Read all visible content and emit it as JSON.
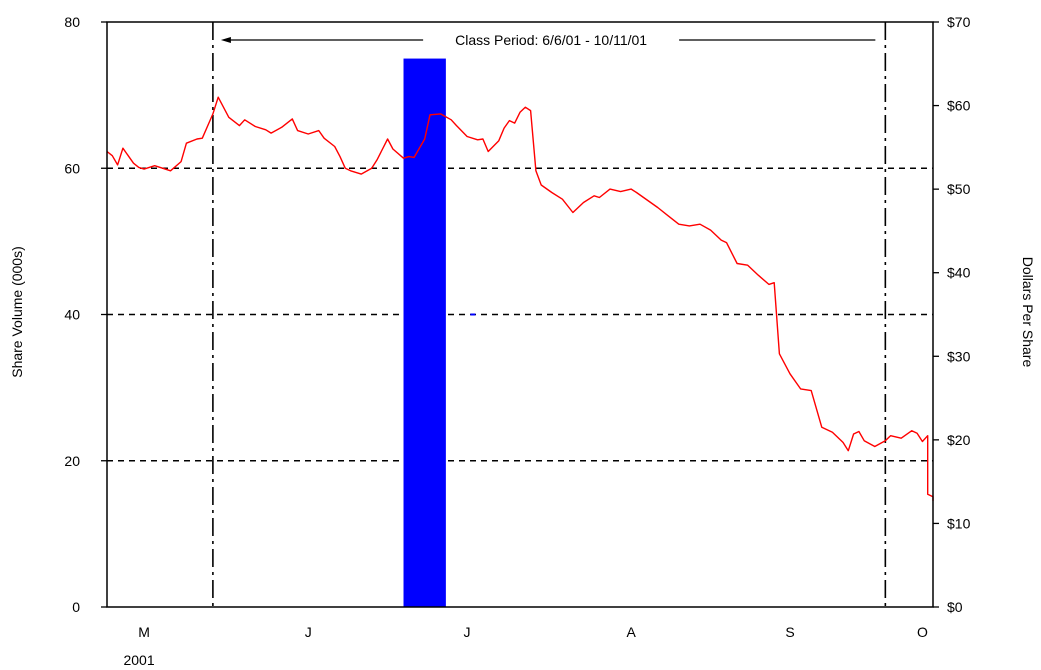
{
  "chart_data": {
    "type": "line",
    "title": "",
    "ylabel_left": "Share Volume (000s)",
    "ylabel_right": "Dollars Per Share",
    "ylim_left": [
      0,
      80
    ],
    "ylim_right": [
      0,
      70
    ],
    "yticks_left": [
      0,
      20,
      40,
      60,
      80
    ],
    "yticks_right": [
      "$0",
      "$10",
      "$20",
      "$30",
      "$40",
      "$50",
      "$60",
      "$70"
    ],
    "yticks_right_values": [
      0,
      10,
      20,
      30,
      40,
      50,
      60,
      70
    ],
    "grid_lines_left": [
      20,
      40,
      60
    ],
    "x_start": "2001-05-17",
    "x_end": "2001-10-20",
    "month_labels": [
      {
        "label": "M",
        "date": "2001-05-24"
      },
      {
        "label": "J",
        "date": "2001-06-24"
      },
      {
        "label": "J",
        "date": "2001-07-24"
      },
      {
        "label": "A",
        "date": "2001-08-24"
      },
      {
        "label": "S",
        "date": "2001-09-23"
      },
      {
        "label": "O",
        "date": "2001-10-18"
      }
    ],
    "year_label": "2001",
    "class_period": {
      "label": "Class Period: 6/6/01 - 10/11/01",
      "start": "2001-06-06",
      "end": "2001-10-11"
    },
    "volume_series": {
      "name": "Share Volume",
      "color": "#0000ff",
      "bars": [
        {
          "start": "2001-07-12",
          "end": "2001-07-20",
          "value": 75
        }
      ]
    },
    "price_series": {
      "name": "Dollars Per Share",
      "color": "#ff0000",
      "points": [
        [
          "2001-05-17",
          54.5
        ],
        [
          "2001-05-18",
          54.0
        ],
        [
          "2001-05-19",
          52.9
        ],
        [
          "2001-05-20",
          54.9
        ],
        [
          "2001-05-22",
          53.1
        ],
        [
          "2001-05-23",
          52.6
        ],
        [
          "2001-05-24",
          52.4
        ],
        [
          "2001-05-26",
          52.8
        ],
        [
          "2001-05-28",
          52.4
        ],
        [
          "2001-05-29",
          52.2
        ],
        [
          "2001-05-31",
          53.3
        ],
        [
          "2001-06-01",
          55.5
        ],
        [
          "2001-06-03",
          56.0
        ],
        [
          "2001-06-04",
          56.1
        ],
        [
          "2001-06-06",
          59.0
        ],
        [
          "2001-06-07",
          61.0
        ],
        [
          "2001-06-09",
          58.6
        ],
        [
          "2001-06-11",
          57.6
        ],
        [
          "2001-06-12",
          58.3
        ],
        [
          "2001-06-14",
          57.5
        ],
        [
          "2001-06-16",
          57.1
        ],
        [
          "2001-06-17",
          56.7
        ],
        [
          "2001-06-19",
          57.4
        ],
        [
          "2001-06-21",
          58.4
        ],
        [
          "2001-06-22",
          57.0
        ],
        [
          "2001-06-24",
          56.6
        ],
        [
          "2001-06-26",
          57.0
        ],
        [
          "2001-06-27",
          56.1
        ],
        [
          "2001-06-29",
          55.1
        ],
        [
          "2001-06-30",
          53.9
        ],
        [
          "2001-07-01",
          52.5
        ],
        [
          "2001-07-02",
          52.2
        ],
        [
          "2001-07-04",
          51.8
        ],
        [
          "2001-07-06",
          52.5
        ],
        [
          "2001-07-07",
          53.5
        ],
        [
          "2001-07-09",
          56.0
        ],
        [
          "2001-07-10",
          54.8
        ],
        [
          "2001-07-12",
          53.7
        ],
        [
          "2001-07-13",
          53.9
        ],
        [
          "2001-07-14",
          53.8
        ],
        [
          "2001-07-16",
          56.0
        ],
        [
          "2001-07-17",
          58.9
        ],
        [
          "2001-07-19",
          59.0
        ],
        [
          "2001-07-21",
          58.3
        ],
        [
          "2001-07-22",
          57.6
        ],
        [
          "2001-07-24",
          56.3
        ],
        [
          "2001-07-26",
          55.9
        ],
        [
          "2001-07-27",
          56.0
        ],
        [
          "2001-07-28",
          54.5
        ],
        [
          "2001-07-30",
          55.8
        ],
        [
          "2001-07-31",
          57.3
        ],
        [
          "2001-08-01",
          58.2
        ],
        [
          "2001-08-02",
          57.9
        ],
        [
          "2001-08-03",
          59.2
        ],
        [
          "2001-08-04",
          59.8
        ],
        [
          "2001-08-05",
          59.4
        ],
        [
          "2001-08-06",
          52.2
        ],
        [
          "2001-08-07",
          50.5
        ],
        [
          "2001-08-09",
          49.6
        ],
        [
          "2001-08-11",
          48.8
        ],
        [
          "2001-08-13",
          47.2
        ],
        [
          "2001-08-15",
          48.4
        ],
        [
          "2001-08-17",
          49.2
        ],
        [
          "2001-08-18",
          49.0
        ],
        [
          "2001-08-20",
          50.0
        ],
        [
          "2001-08-22",
          49.7
        ],
        [
          "2001-08-24",
          50.0
        ],
        [
          "2001-08-25",
          49.6
        ],
        [
          "2001-08-27",
          48.7
        ],
        [
          "2001-08-29",
          47.8
        ],
        [
          "2001-08-31",
          46.8
        ],
        [
          "2001-09-02",
          45.8
        ],
        [
          "2001-09-04",
          45.6
        ],
        [
          "2001-09-06",
          45.8
        ],
        [
          "2001-09-08",
          45.1
        ],
        [
          "2001-09-10",
          43.9
        ],
        [
          "2001-09-11",
          43.6
        ],
        [
          "2001-09-13",
          41.1
        ],
        [
          "2001-09-15",
          40.9
        ],
        [
          "2001-09-17",
          39.7
        ],
        [
          "2001-09-19",
          38.6
        ],
        [
          "2001-09-20",
          38.8
        ],
        [
          "2001-09-21",
          30.3
        ],
        [
          "2001-09-23",
          27.9
        ],
        [
          "2001-09-25",
          26.1
        ],
        [
          "2001-09-27",
          25.9
        ],
        [
          "2001-09-29",
          21.5
        ],
        [
          "2001-10-01",
          20.9
        ],
        [
          "2001-10-03",
          19.7
        ],
        [
          "2001-10-04",
          18.7
        ],
        [
          "2001-10-05",
          20.7
        ],
        [
          "2001-10-06",
          21.0
        ],
        [
          "2001-10-07",
          19.9
        ],
        [
          "2001-10-09",
          19.2
        ],
        [
          "2001-10-11",
          19.9
        ],
        [
          "2001-10-12",
          20.5
        ],
        [
          "2001-10-14",
          20.2
        ],
        [
          "2001-10-16",
          21.1
        ],
        [
          "2001-10-17",
          20.8
        ],
        [
          "2001-10-18",
          19.8
        ],
        [
          "2001-10-19",
          20.5
        ],
        [
          "2001-10-19",
          13.5
        ],
        [
          "2001-10-20",
          13.2
        ],
        [
          "2001-10-20",
          12.7
        ]
      ]
    },
    "volume_marker": {
      "date": "2001-07-25",
      "value": 40,
      "color": "#0000ff"
    }
  }
}
